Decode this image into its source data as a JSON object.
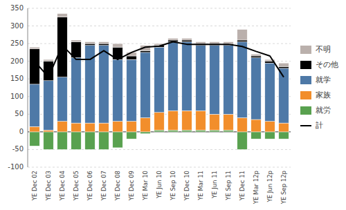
{
  "chart_data": {
    "type": "bar",
    "stacked": true,
    "categories": [
      "YE Dec 02",
      "YE Dec 03",
      "YE Dec 04",
      "YE Dec 05",
      "YE Dec 06",
      "YE Dec 07",
      "YE Dec 08",
      "YE Dec 09",
      "YE Mar 10",
      "YE Jun 10",
      "YE Sep 10",
      "YE Dec 10",
      "YE Mar 11",
      "YE Jun 11",
      "YE Sep 11",
      "YE Dec 11",
      "YE Mar 12p",
      "YE Jun 12p",
      "YE Sep 12p"
    ],
    "series": [
      {
        "name": "就労",
        "color": "#59a14f",
        "values": [
          -40,
          -50,
          -50,
          -50,
          -50,
          -50,
          -45,
          -20,
          -5,
          5,
          5,
          5,
          5,
          5,
          5,
          -50,
          -20,
          -20,
          -20
        ]
      },
      {
        "name": "家族",
        "color": "#f28e2b",
        "values": [
          15,
          5,
          30,
          25,
          25,
          25,
          30,
          30,
          40,
          50,
          55,
          55,
          55,
          45,
          45,
          40,
          35,
          30,
          25
        ]
      },
      {
        "name": "就学",
        "color": "#4e79a7",
        "values": [
          120,
          140,
          125,
          185,
          220,
          220,
          175,
          175,
          185,
          185,
          195,
          195,
          185,
          195,
          195,
          215,
          175,
          165,
          155
        ]
      },
      {
        "name": "その他",
        "color": "#000000",
        "values": [
          100,
          55,
          170,
          45,
          5,
          5,
          35,
          10,
          5,
          5,
          5,
          5,
          5,
          5,
          5,
          5,
          5,
          5,
          5
        ]
      },
      {
        "name": "不明",
        "color": "#bab0ac",
        "values": [
          5,
          5,
          10,
          5,
          5,
          5,
          10,
          10,
          15,
          5,
          5,
          5,
          5,
          5,
          5,
          30,
          5,
          5,
          10
        ]
      },
      {
        "name": "計",
        "type": "line",
        "color": "#000000",
        "values": [
          200,
          155,
          245,
          205,
          205,
          230,
          205,
          225,
          240,
          243,
          255,
          248,
          248,
          248,
          248,
          242,
          228,
          215,
          155
        ]
      }
    ],
    "ylim": [
      -100,
      350
    ],
    "yticks": [
      -100,
      -50,
      0,
      50,
      100,
      150,
      200,
      250,
      300,
      350
    ],
    "grid": true,
    "legend": "right"
  }
}
